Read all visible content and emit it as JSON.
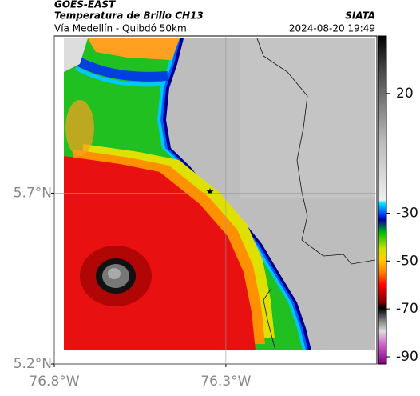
{
  "header": {
    "satellite": "GOES-EAST",
    "product": "Temperatura de Brillo CH13",
    "route": "Vía Medellín - Quibdó 50km",
    "agency": "SIATA",
    "timestamp": "2024-08-20 19:49"
  },
  "map": {
    "xlim": [
      -76.8,
      -75.86
    ],
    "ylim": [
      5.2,
      6.16
    ],
    "xticks": [
      {
        "value": -76.8,
        "label": "76.8°W"
      },
      {
        "value": -76.3,
        "label": "76.3°W"
      }
    ],
    "yticks": [
      {
        "value": 5.2,
        "label": "5.2°N"
      },
      {
        "value": 5.7,
        "label": "5.7°N"
      }
    ],
    "grid": true
  },
  "colorbar": {
    "lim": [
      -93,
      44
    ],
    "ticks": [
      20,
      -30,
      -50,
      -70,
      -90
    ]
  }
}
